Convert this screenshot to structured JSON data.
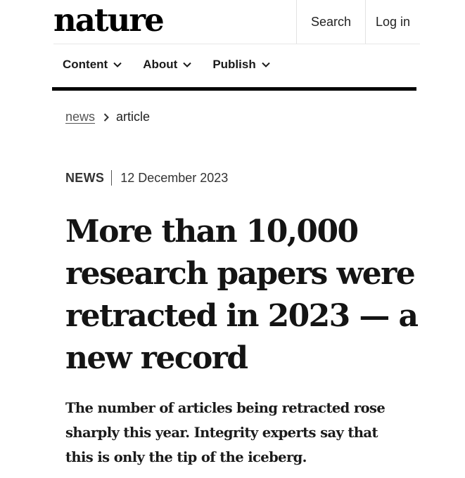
{
  "header": {
    "logo": "nature",
    "search_label": "Search",
    "login_label": "Log in"
  },
  "nav": {
    "items": [
      {
        "label": "Content",
        "icon": "chevron-down-icon"
      },
      {
        "label": "About",
        "icon": "chevron-down-icon"
      },
      {
        "label": "Publish",
        "icon": "chevron-down-icon"
      }
    ]
  },
  "breadcrumb": {
    "items": [
      "news",
      "article"
    ],
    "separator_icon": "chevron-right-icon"
  },
  "article": {
    "type": "NEWS",
    "date": "12 December 2023",
    "title": "More than 10,000 research papers were retracted in 2023 — a new record",
    "standfirst": "The number of articles being retracted rose sharply this year. Integrity experts say that this is only the tip of the iceberg."
  },
  "colors": {
    "text": "#111111",
    "muted": "#555555",
    "rule": "#000000",
    "background": "#ffffff"
  }
}
